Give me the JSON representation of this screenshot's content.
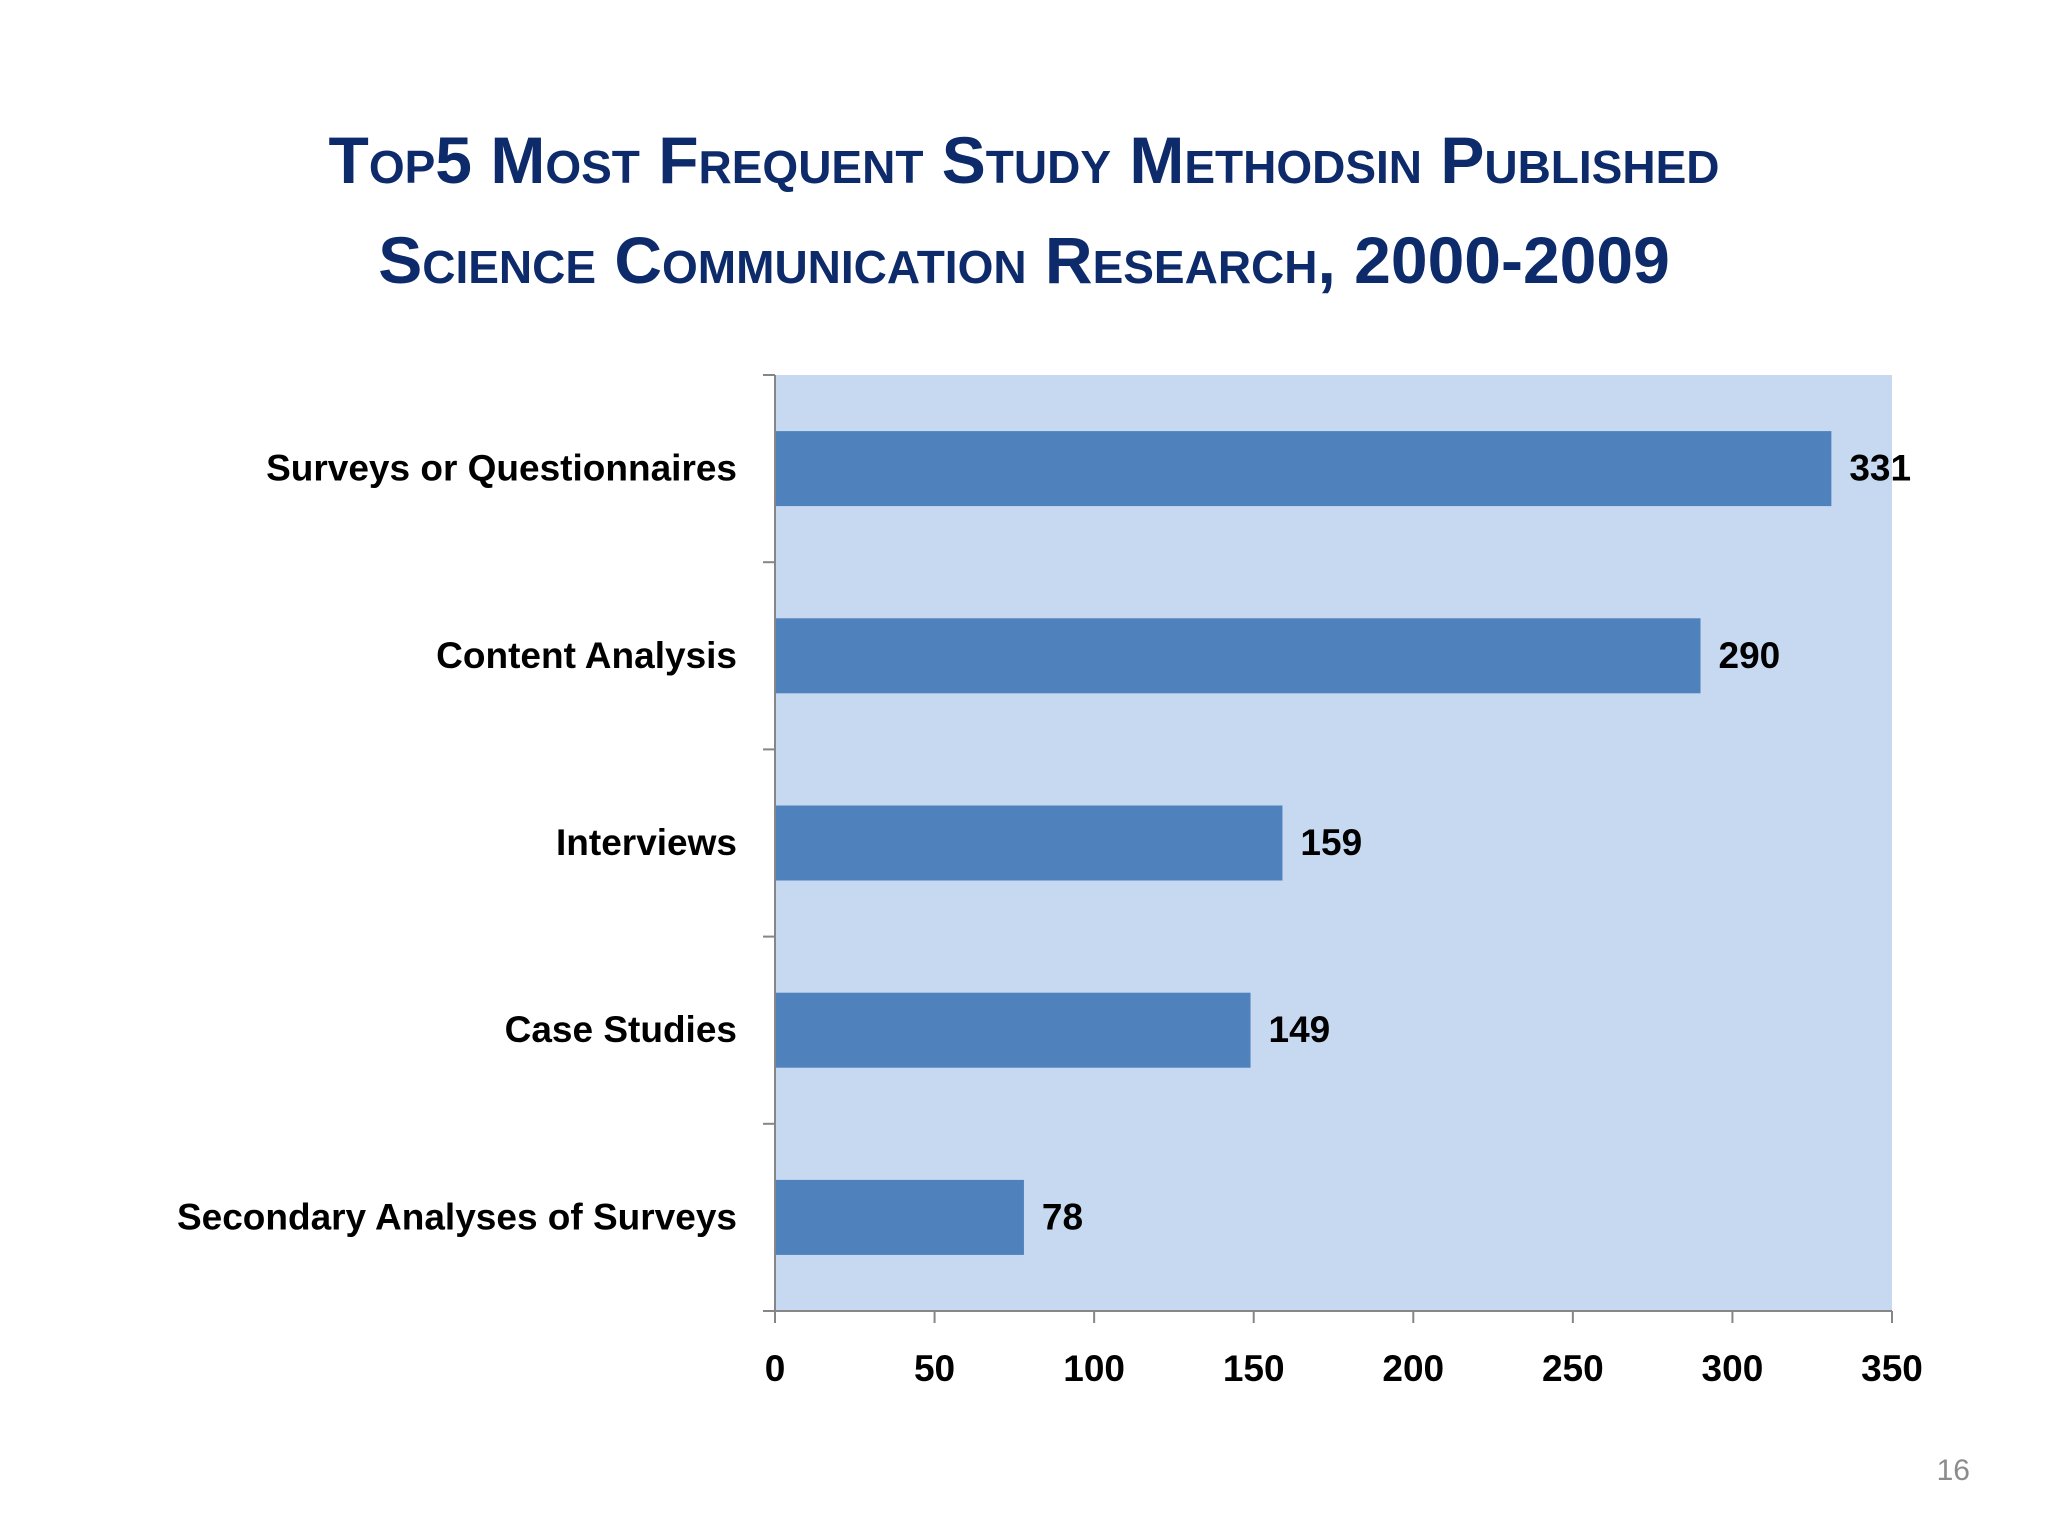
{
  "slide": {
    "title_line1": "Top5 Most Frequent Study Methodsin Published",
    "title_line2": "Science Communication Research, 2000-2009",
    "page_number": "16"
  },
  "colors": {
    "title": "#0d2a6b",
    "plot_background": "#c6d9f0",
    "bar": "#4f81bd",
    "axis": "#868686",
    "text": "#000000"
  },
  "chart_data": {
    "type": "bar",
    "orientation": "horizontal",
    "categories": [
      "Surveys or Questionnaires",
      "Content Analysis",
      "Interviews",
      "Case Studies",
      "Secondary Analyses of Surveys"
    ],
    "values": [
      331,
      290,
      159,
      149,
      78
    ],
    "data_labels": [
      "331",
      "290",
      "159",
      "149",
      "78"
    ],
    "xlim": [
      0,
      350
    ],
    "x_ticks": [
      0,
      50,
      100,
      150,
      200,
      250,
      300,
      350
    ],
    "xlabel": "",
    "ylabel": "",
    "grid": false,
    "legend": "none"
  }
}
